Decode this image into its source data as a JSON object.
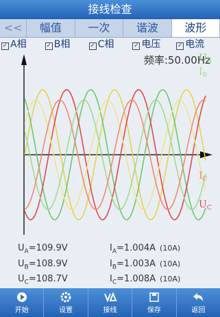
{
  "header": {
    "title": "接线检查"
  },
  "tabs": [
    "<<",
    "幅值",
    "一次",
    "谐波",
    "波形"
  ],
  "checkboxes": [
    "A相",
    "B相",
    "C相",
    "电压",
    "电流"
  ],
  "frequency": "频率:50.00Hz",
  "wave_labels": [
    {
      "main": "U",
      "sub": "B"
    },
    {
      "main": "I",
      "sub": "B"
    },
    {
      "main": "I",
      "sub": "C"
    },
    {
      "main": "U",
      "sub": "C"
    }
  ],
  "readings": {
    "voltage": [
      {
        "main": "U",
        "sub": "A",
        "value": "=109.9V"
      },
      {
        "main": "U",
        "sub": "B",
        "value": "=108.9V"
      },
      {
        "main": "U",
        "sub": "C",
        "value": "=108.7V"
      }
    ],
    "current": [
      {
        "main": "I",
        "sub": "A",
        "value": "=1.004A",
        "range": "(10A)"
      },
      {
        "main": "I",
        "sub": "B",
        "value": "=1.003A",
        "range": "(10A)"
      },
      {
        "main": "I",
        "sub": "C",
        "value": "=1.008A",
        "range": "(10A)"
      }
    ]
  },
  "toolbar": [
    "开始",
    "设置",
    "接线",
    "保存",
    "返回"
  ]
}
